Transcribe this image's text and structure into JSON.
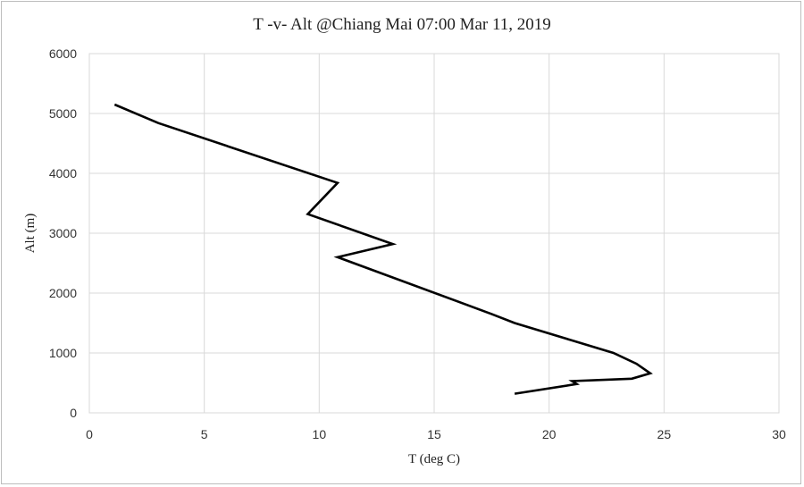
{
  "chart_data": {
    "type": "line",
    "title": "T -v- Alt @Chiang Mai 07:00 Mar 11, 2019",
    "xlabel": "T (deg C)",
    "ylabel": "Alt (m)",
    "xlim": [
      0,
      30
    ],
    "ylim": [
      0,
      6000
    ],
    "x_ticks": [
      0,
      5,
      10,
      15,
      20,
      25,
      30
    ],
    "y_ticks": [
      0,
      1000,
      2000,
      3000,
      4000,
      5000,
      6000
    ],
    "grid": true,
    "legend": "none",
    "series": [
      {
        "color": "#000000",
        "points": [
          {
            "x": 18.5,
            "y": 320
          },
          {
            "x": 21.2,
            "y": 480
          },
          {
            "x": 21.0,
            "y": 530
          },
          {
            "x": 23.6,
            "y": 570
          },
          {
            "x": 24.4,
            "y": 660
          },
          {
            "x": 23.8,
            "y": 820
          },
          {
            "x": 22.8,
            "y": 1000
          },
          {
            "x": 18.5,
            "y": 1500
          },
          {
            "x": 17.5,
            "y": 1650
          },
          {
            "x": 10.8,
            "y": 2600
          },
          {
            "x": 13.2,
            "y": 2820
          },
          {
            "x": 9.5,
            "y": 3320
          },
          {
            "x": 10.8,
            "y": 3840
          },
          {
            "x": 3.0,
            "y": 4840
          },
          {
            "x": 1.1,
            "y": 5150
          }
        ]
      }
    ]
  }
}
